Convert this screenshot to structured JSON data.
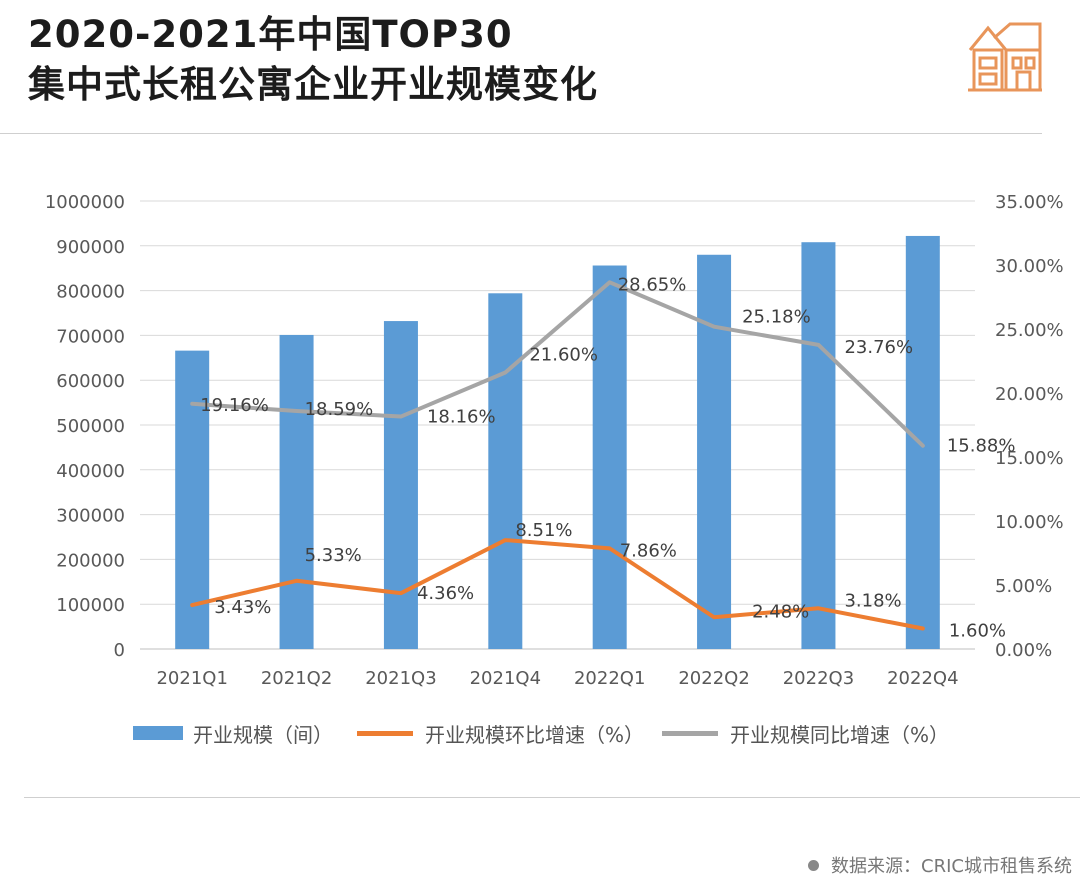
{
  "header": {
    "title_line1": "2020-2021年中国TOP30",
    "title_line2": "集中式长租公寓企业开业规模变化",
    "logo_icon": "house-icon",
    "accent_color": "#e8955a"
  },
  "chart_data": {
    "type": "bar",
    "categories": [
      "2021Q1",
      "2021Q2",
      "2021Q3",
      "2021Q4",
      "2022Q1",
      "2022Q2",
      "2022Q3",
      "2022Q4"
    ],
    "series": [
      {
        "name": "开业规模（间）",
        "type": "bar",
        "axis": "left",
        "color": "#5b9bd5",
        "values": [
          666000,
          701000,
          732000,
          794000,
          856000,
          880000,
          908000,
          922000
        ]
      },
      {
        "name": "开业规模环比增速（%）",
        "type": "line",
        "axis": "right",
        "color": "#ed7d31",
        "values": [
          3.43,
          5.33,
          4.36,
          8.51,
          7.86,
          2.48,
          3.18,
          1.6
        ],
        "labels": [
          "3.43%",
          "5.33%",
          "4.36%",
          "8.51%",
          "7.86%",
          "2.48%",
          "3.18%",
          "1.60%"
        ]
      },
      {
        "name": "开业规模同比增速（%）",
        "type": "line",
        "axis": "right",
        "color": "#a5a5a5",
        "values": [
          19.16,
          18.59,
          18.16,
          21.6,
          28.65,
          25.18,
          23.76,
          15.88
        ],
        "labels": [
          "19.16%",
          "18.59%",
          "18.16%",
          "21.60%",
          "28.65%",
          "25.18%",
          "23.76%",
          "15.88%"
        ]
      }
    ],
    "y_left": {
      "min": 0,
      "max": 1000000,
      "step": 100000,
      "ticks": [
        "0",
        "100000",
        "200000",
        "300000",
        "400000",
        "500000",
        "600000",
        "700000",
        "800000",
        "900000",
        "1000000"
      ]
    },
    "y_right": {
      "min": 0,
      "max": 35,
      "step": 5,
      "ticks": [
        "0.00%",
        "5.00%",
        "10.00%",
        "15.00%",
        "20.00%",
        "25.00%",
        "30.00%",
        "35.00%"
      ]
    },
    "grid": true,
    "legend_position": "bottom"
  },
  "footer": {
    "source": "数据来源：CRIC城市租售系统"
  }
}
